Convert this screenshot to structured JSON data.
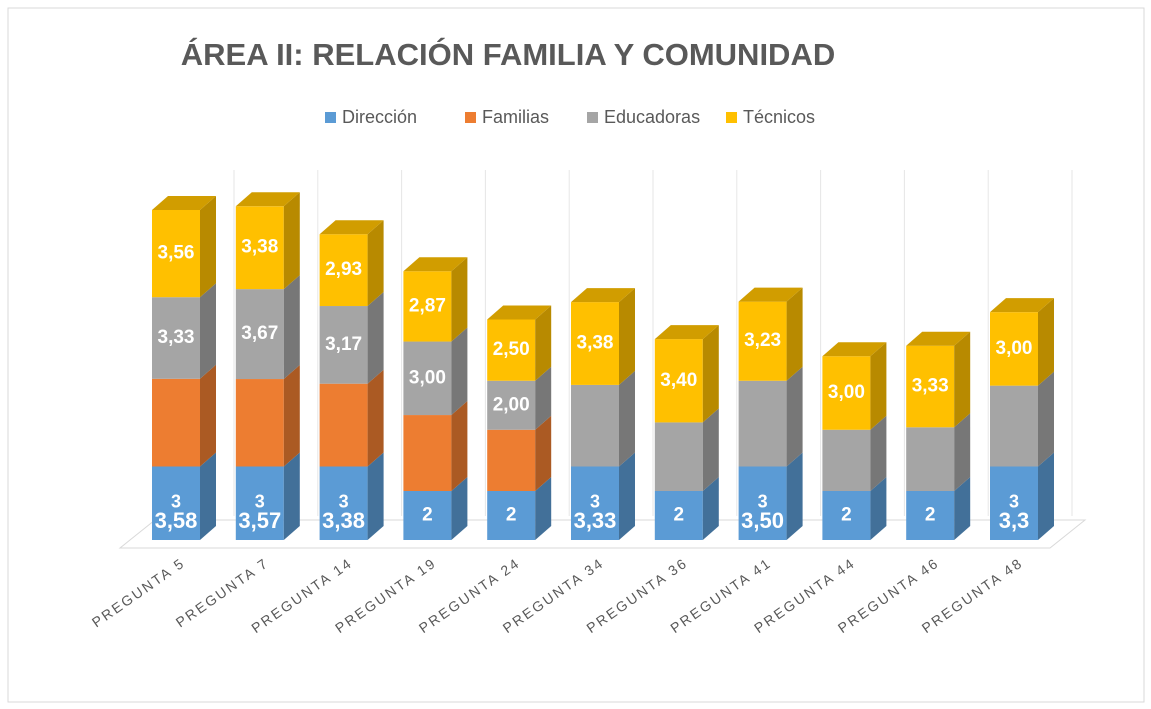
{
  "chart_data": {
    "type": "bar3d_stacked",
    "title": "ÁREA II: RELACIÓN FAMILIA Y COMUNIDAD",
    "categories": [
      "PREGUNTA 5",
      "PREGUNTA 7",
      "PREGUNTA 14",
      "PREGUNTA 19",
      "PREGUNTA 24",
      "PREGUNTA 34",
      "PREGUNTA 36",
      "PREGUNTA 41",
      "PREGUNTA 44",
      "PREGUNTA 46",
      "PREGUNTA 48"
    ],
    "series": [
      {
        "name": "Dirección",
        "color": "#5b9bd5",
        "values": [
          3,
          3,
          3,
          2,
          2,
          3,
          2,
          3,
          2,
          2,
          3
        ]
      },
      {
        "name": "Familias",
        "color": "#ed7d31",
        "values": [
          3.58,
          3.57,
          3.38,
          3.1,
          2.5,
          null,
          null,
          null,
          null,
          null,
          null
        ],
        "value_labels": [
          "3,58",
          "3,57",
          "3,38",
          null,
          null,
          null,
          null,
          null,
          null,
          null,
          null
        ]
      },
      {
        "name": "Educadoras",
        "color": "#a5a5a5",
        "values": [
          3.33,
          3.67,
          3.17,
          3.0,
          2.0,
          3.33,
          2.8,
          3.5,
          2.5,
          2.6,
          3.3
        ],
        "value_labels": [
          "3,33",
          "3,67",
          "3,17",
          "3,00",
          "2,00",
          "3,33",
          null,
          "3,50",
          null,
          null,
          "3,3"
        ]
      },
      {
        "name": "Técnicos",
        "color": "#ffc000",
        "values": [
          3.56,
          3.38,
          2.93,
          2.87,
          2.5,
          3.38,
          3.4,
          3.23,
          3.0,
          3.33,
          3.0
        ],
        "value_labels": [
          "3,56",
          "3,38",
          "2,93",
          "2,87",
          "2,50",
          "3,38",
          "3,40",
          "3,23",
          "3,00",
          "3,33",
          "3,00"
        ]
      }
    ],
    "legend": "top"
  }
}
